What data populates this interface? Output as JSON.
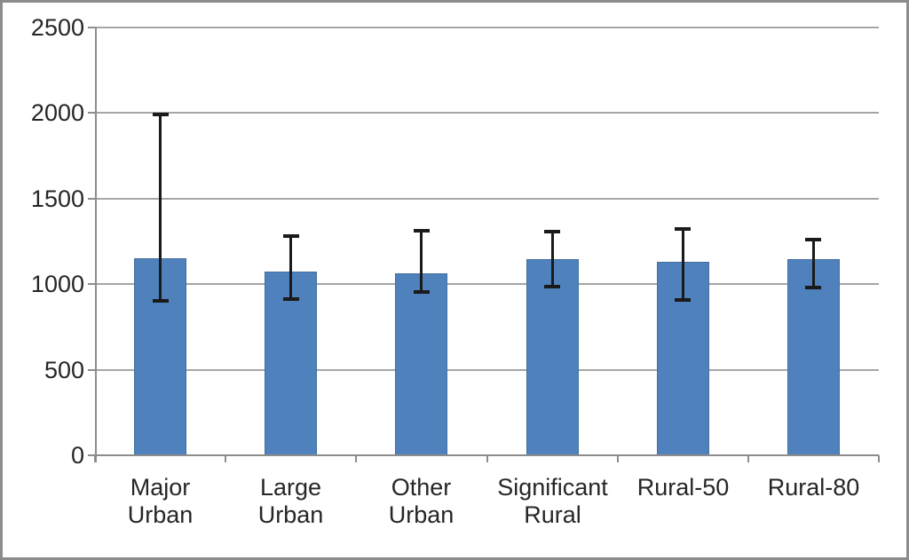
{
  "chart_data": {
    "type": "bar",
    "title": "",
    "xlabel": "",
    "ylabel": "",
    "categories": [
      "Major Urban",
      "Large Urban",
      "Other Urban",
      "Significant Rural",
      "Rural-50",
      "Rural-80"
    ],
    "values": [
      1150,
      1075,
      1065,
      1145,
      1130,
      1145
    ],
    "error_high": [
      1990,
      1280,
      1310,
      1305,
      1325,
      1260
    ],
    "error_low": [
      905,
      915,
      955,
      985,
      910,
      980
    ],
    "ylim": [
      0,
      2500
    ],
    "yticks": [
      0,
      500,
      1000,
      1500,
      2000,
      2500
    ],
    "grid": true,
    "legend": "none",
    "colors": {
      "bar_fill": "#4F81BD",
      "bar_edge": "#41719C",
      "error_bar": "#1A1A1A",
      "gridline": "#A6A6A6",
      "axis": "#8C8C8C",
      "frame_border": "#8C8C8C",
      "text": "#262626",
      "background": "#FFFFFF"
    }
  }
}
